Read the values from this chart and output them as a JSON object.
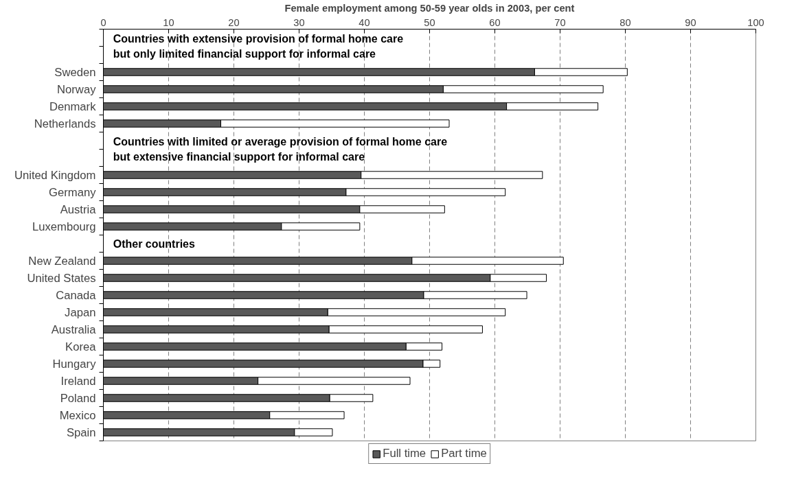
{
  "chart_data": {
    "type": "bar",
    "orientation": "horizontal",
    "stacked": true,
    "xlabel": "Female employment among 50-59 year olds in 2003, per cent",
    "categories": [
      null,
      null,
      "Sweden",
      "Norway",
      "Denmark",
      "Netherlands",
      null,
      null,
      "United Kingdom",
      "Germany",
      "Austria",
      "Luxembourg",
      null,
      "New Zealand",
      "United States",
      "Canada",
      "Japan",
      "Australia",
      "Korea",
      "Hungary",
      "Ireland",
      "Poland",
      "Mexico",
      "Spain"
    ],
    "series": [
      {
        "name": "Full time",
        "color": "#595959",
        "values": [
          null,
          null,
          66.1,
          52.1,
          61.8,
          18.0,
          null,
          null,
          39.5,
          37.2,
          39.3,
          27.3,
          null,
          47.3,
          59.3,
          49.1,
          34.4,
          34.6,
          46.4,
          49.0,
          23.7,
          34.7,
          25.5,
          29.3
        ]
      },
      {
        "name": "Part time",
        "color": "#ffffff",
        "values": [
          null,
          null,
          14.2,
          24.5,
          14.0,
          35.0,
          null,
          null,
          27.8,
          24.4,
          13.0,
          12.0,
          null,
          23.2,
          8.6,
          15.8,
          27.2,
          23.5,
          5.5,
          2.6,
          23.3,
          6.6,
          11.4,
          5.8
        ]
      }
    ],
    "annotations": [
      "Countries with extensive provision of formal home care\nbut only limited financial support for informal care",
      "Countries with limited or average provision of formal home care\nbut extensive financial support for informal care",
      "Other countries"
    ],
    "xlim": [
      0,
      100
    ],
    "xticks": [
      0,
      10,
      20,
      30,
      40,
      50,
      60,
      70,
      80,
      90,
      100
    ],
    "grid": "x",
    "legend": "bottom"
  }
}
